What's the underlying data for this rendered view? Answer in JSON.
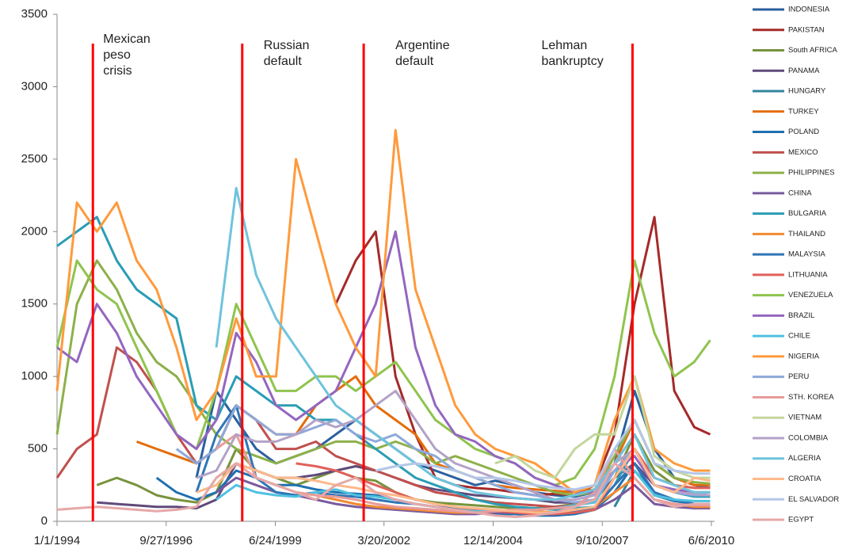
{
  "chart_data": {
    "type": "line",
    "x": [
      1994,
      1994.5,
      1995,
      1995.5,
      1996,
      1996.5,
      1997,
      1997.5,
      1998,
      1998.5,
      1999,
      1999.5,
      2000,
      2000.5,
      2001,
      2001.5,
      2002,
      2002.5,
      2003,
      2003.5,
      2004,
      2004.5,
      2005,
      2005.5,
      2006,
      2006.5,
      2007,
      2007.5,
      2008,
      2008.5,
      2009,
      2009.5,
      2010,
      2010.4
    ],
    "xlim": [
      1994,
      2010.5
    ],
    "xticks": [
      {
        "value": 1994.0,
        "label": "1/1/1994"
      },
      {
        "value": 1996.74,
        "label": "9/27/1996"
      },
      {
        "value": 1999.48,
        "label": "6/24/1999"
      },
      {
        "value": 2002.21,
        "label": "3/20/2002"
      },
      {
        "value": 2004.95,
        "label": "12/14/2004"
      },
      {
        "value": 2007.69,
        "label": "9/10/2007"
      },
      {
        "value": 2010.43,
        "label": "6/6/2010"
      }
    ],
    "ylim": [
      0,
      3500
    ],
    "yticks": [
      0,
      500,
      1000,
      1500,
      2000,
      2500,
      3000,
      3500
    ],
    "grid": false,
    "legend": "right",
    "events": [
      {
        "label": [
          "Mexican",
          "peso",
          "crisis"
        ],
        "x": 1994.9,
        "color": "#ff0000"
      },
      {
        "label": [
          "Russian",
          "default"
        ],
        "x": 1998.65,
        "color": "#ff0000"
      },
      {
        "label": [
          "Argentine",
          "default"
        ],
        "x": 2001.7,
        "color": "#ff0000"
      },
      {
        "label": [
          "Lehman",
          "bankruptcy"
        ],
        "x": 2008.45,
        "color": "#ff0000"
      }
    ],
    "series": [
      {
        "name": "INDONESIA",
        "color": "#2a5f9e",
        "values": [
          null,
          null,
          null,
          null,
          null,
          null,
          null,
          300,
          900,
          700,
          500,
          400,
          450,
          500,
          600,
          700,
          600,
          500,
          400,
          350,
          300,
          250,
          280,
          250,
          200,
          180,
          170,
          200,
          400,
          900,
          500,
          300,
          250,
          230
        ]
      },
      {
        "name": "PAKISTAN",
        "color": "#a52a2a",
        "values": [
          null,
          null,
          null,
          null,
          null,
          null,
          null,
          null,
          null,
          null,
          null,
          null,
          null,
          null,
          1500,
          1800,
          2000,
          1000,
          600,
          300,
          250,
          230,
          220,
          200,
          180,
          190,
          180,
          250,
          600,
          1500,
          2100,
          900,
          650,
          600
        ]
      },
      {
        "name": "South AFRICA",
        "color": "#77933c",
        "values": [
          null,
          null,
          250,
          300,
          250,
          180,
          150,
          130,
          200,
          500,
          350,
          300,
          250,
          300,
          350,
          300,
          280,
          200,
          150,
          130,
          120,
          110,
          100,
          90,
          90,
          100,
          120,
          150,
          300,
          600,
          350,
          250,
          200,
          200
        ]
      },
      {
        "name": "PANAMA",
        "color": "#604a7b",
        "values": [
          null,
          null,
          130,
          120,
          110,
          100,
          100,
          90,
          150,
          400,
          350,
          300,
          300,
          320,
          350,
          380,
          350,
          300,
          250,
          220,
          200,
          180,
          170,
          160,
          150,
          130,
          130,
          150,
          300,
          400,
          250,
          200,
          180,
          180
        ]
      },
      {
        "name": "HUNGARY",
        "color": "#31859c",
        "values": [
          null,
          null,
          null,
          null,
          null,
          null,
          null,
          null,
          null,
          null,
          null,
          null,
          null,
          null,
          null,
          null,
          null,
          null,
          null,
          null,
          null,
          null,
          null,
          null,
          null,
          null,
          null,
          null,
          100,
          350,
          200,
          150,
          120,
          110
        ]
      },
      {
        "name": "TURKEY",
        "color": "#e46c0a",
        "values": [
          null,
          null,
          null,
          null,
          550,
          500,
          450,
          400,
          500,
          800,
          700,
          600,
          600,
          800,
          900,
          1000,
          800,
          700,
          600,
          400,
          350,
          300,
          250,
          230,
          220,
          210,
          200,
          220,
          400,
          700,
          400,
          300,
          250,
          250
        ]
      },
      {
        "name": "POLAND",
        "color": "#1f70b0",
        "values": [
          null,
          null,
          null,
          null,
          null,
          300,
          200,
          150,
          200,
          350,
          300,
          250,
          250,
          220,
          200,
          190,
          180,
          150,
          120,
          100,
          80,
          60,
          50,
          50,
          40,
          40,
          50,
          80,
          200,
          400,
          180,
          140,
          120,
          120
        ]
      },
      {
        "name": "MEXICO",
        "color": "#c0504d",
        "values": [
          300,
          500,
          600,
          1200,
          1100,
          900,
          600,
          400,
          500,
          800,
          700,
          500,
          500,
          550,
          450,
          400,
          350,
          300,
          250,
          200,
          180,
          150,
          130,
          120,
          110,
          100,
          110,
          150,
          350,
          500,
          250,
          200,
          180,
          170
        ]
      },
      {
        "name": "PHILIPPINES",
        "color": "#8db04a",
        "values": [
          600,
          1500,
          1800,
          1600,
          1300,
          1100,
          1000,
          800,
          600,
          500,
          450,
          400,
          450,
          500,
          550,
          550,
          500,
          550,
          500,
          400,
          450,
          400,
          350,
          300,
          250,
          200,
          180,
          200,
          450,
          700,
          400,
          300,
          270,
          260
        ]
      },
      {
        "name": "CHINA",
        "color": "#7a5a9e",
        "values": [
          null,
          null,
          null,
          null,
          null,
          null,
          null,
          null,
          200,
          300,
          250,
          200,
          180,
          150,
          120,
          100,
          90,
          80,
          70,
          60,
          50,
          50,
          60,
          60,
          50,
          50,
          60,
          80,
          150,
          250,
          120,
          100,
          90,
          90
        ]
      },
      {
        "name": "BULGARIA",
        "color": "#2a9db5",
        "values": [
          1900,
          2000,
          2100,
          1800,
          1600,
          1500,
          1400,
          800,
          700,
          1000,
          900,
          800,
          800,
          700,
          700,
          600,
          500,
          400,
          300,
          250,
          200,
          150,
          120,
          100,
          90,
          80,
          90,
          100,
          250,
          500,
          250,
          200,
          170,
          170
        ]
      },
      {
        "name": "THAILAND",
        "color": "#f08a30",
        "values": [
          null,
          null,
          null,
          null,
          null,
          null,
          null,
          null,
          300,
          400,
          300,
          250,
          200,
          180,
          150,
          120,
          100,
          90,
          80,
          70,
          60,
          60,
          70,
          80,
          70,
          60,
          70,
          100,
          200,
          300,
          150,
          120,
          100,
          100
        ]
      },
      {
        "name": "MALAYSIA",
        "color": "#2e75b6",
        "values": [
          null,
          null,
          null,
          null,
          null,
          null,
          null,
          200,
          600,
          800,
          300,
          200,
          180,
          200,
          180,
          170,
          150,
          130,
          120,
          100,
          90,
          80,
          70,
          60,
          60,
          60,
          70,
          90,
          250,
          400,
          200,
          150,
          120,
          120
        ]
      },
      {
        "name": "LITHUANIA",
        "color": "#e0605a",
        "values": [
          null,
          null,
          null,
          null,
          null,
          null,
          null,
          null,
          null,
          null,
          null,
          null,
          400,
          380,
          350,
          300,
          250,
          200,
          150,
          120,
          100,
          80,
          70,
          60,
          50,
          50,
          60,
          80,
          300,
          500,
          300,
          250,
          230,
          230
        ]
      },
      {
        "name": "VENEZUELA",
        "color": "#8fc44e",
        "values": [
          1200,
          1800,
          1600,
          1500,
          1200,
          900,
          600,
          500,
          900,
          1500,
          1200,
          900,
          900,
          1000,
          1000,
          900,
          1000,
          1100,
          900,
          700,
          600,
          500,
          450,
          400,
          300,
          250,
          300,
          500,
          1000,
          1800,
          1300,
          1000,
          1100,
          1250
        ]
      },
      {
        "name": "BRAZIL",
        "color": "#9466c0",
        "values": [
          1200,
          1100,
          1500,
          1300,
          1000,
          800,
          600,
          500,
          700,
          1300,
          1100,
          800,
          700,
          800,
          900,
          1200,
          1500,
          2000,
          1200,
          800,
          600,
          550,
          450,
          400,
          300,
          250,
          200,
          200,
          350,
          450,
          250,
          220,
          200,
          200
        ]
      },
      {
        "name": "CHILE",
        "color": "#4fc1e0",
        "values": [
          null,
          null,
          null,
          null,
          null,
          null,
          null,
          null,
          150,
          250,
          200,
          180,
          170,
          200,
          220,
          180,
          170,
          150,
          120,
          100,
          80,
          70,
          70,
          80,
          80,
          90,
          110,
          130,
          350,
          350,
          180,
          150,
          140,
          140
        ]
      },
      {
        "name": "NIGERIA",
        "color": "#ff9a3c",
        "values": [
          900,
          2200,
          2000,
          2200,
          1800,
          1600,
          1200,
          700,
          900,
          1400,
          1000,
          1000,
          2500,
          2000,
          1500,
          1200,
          1000,
          2700,
          1600,
          1200,
          800,
          600,
          500,
          450,
          400,
          300,
          200,
          250,
          700,
          1000,
          500,
          400,
          350,
          350
        ]
      },
      {
        "name": "PERU",
        "color": "#8ea9db",
        "values": [
          null,
          null,
          null,
          null,
          null,
          null,
          500,
          400,
          500,
          800,
          700,
          600,
          600,
          650,
          700,
          600,
          550,
          600,
          500,
          450,
          350,
          300,
          250,
          200,
          180,
          150,
          130,
          150,
          350,
          500,
          250,
          200,
          180,
          180
        ]
      },
      {
        "name": "STH. KOREA",
        "color": "#e89b9b",
        "values": [
          null,
          null,
          null,
          null,
          null,
          null,
          null,
          null,
          500,
          600,
          300,
          250,
          200,
          180,
          170,
          150,
          120,
          100,
          90,
          80,
          70,
          60,
          70,
          80,
          80,
          90,
          100,
          200,
          500,
          300,
          150,
          120,
          110,
          110
        ]
      },
      {
        "name": "VIETNAM",
        "color": "#c3d69b",
        "values": [
          null,
          null,
          null,
          null,
          null,
          null,
          null,
          null,
          null,
          null,
          null,
          null,
          null,
          null,
          null,
          null,
          null,
          null,
          null,
          null,
          null,
          null,
          400,
          450,
          350,
          300,
          500,
          600,
          600,
          1000,
          450,
          350,
          300,
          300
        ]
      },
      {
        "name": "COLOMBIA",
        "color": "#b3a2c7",
        "values": [
          null,
          null,
          null,
          null,
          null,
          null,
          null,
          300,
          350,
          600,
          550,
          550,
          600,
          700,
          650,
          700,
          800,
          900,
          700,
          500,
          400,
          350,
          300,
          250,
          200,
          150,
          150,
          180,
          400,
          500,
          250,
          200,
          190,
          180
        ]
      },
      {
        "name": "ALGERIA",
        "color": "#6fc3dc",
        "values": [
          null,
          null,
          null,
          null,
          null,
          null,
          null,
          null,
          1200,
          2300,
          1700,
          1400,
          1200,
          1000,
          800,
          700,
          600,
          500,
          400,
          300,
          250,
          200,
          180,
          160,
          150,
          150,
          180,
          220,
          400,
          600,
          300,
          250,
          200,
          200
        ]
      },
      {
        "name": "CROATIA",
        "color": "#fcb98b",
        "values": [
          null,
          null,
          null,
          null,
          null,
          null,
          null,
          200,
          250,
          400,
          350,
          300,
          300,
          280,
          250,
          230,
          200,
          180,
          150,
          120,
          100,
          90,
          80,
          70,
          60,
          60,
          80,
          100,
          300,
          500,
          250,
          200,
          300,
          280
        ]
      },
      {
        "name": "EL SALVADOR",
        "color": "#b4c7e7",
        "values": [
          null,
          null,
          null,
          null,
          null,
          null,
          null,
          null,
          null,
          null,
          null,
          null,
          null,
          null,
          null,
          null,
          350,
          380,
          400,
          380,
          350,
          300,
          300,
          280,
          250,
          230,
          220,
          250,
          500,
          700,
          400,
          350,
          330,
          330
        ]
      },
      {
        "name": "EGYPT",
        "color": "#e6a8a8",
        "values": [
          80,
          90,
          100,
          90,
          80,
          70,
          80,
          100,
          300,
          400,
          300,
          250,
          200,
          150,
          250,
          300,
          200,
          150,
          120,
          100,
          80,
          60,
          40,
          30,
          40,
          60,
          100,
          150,
          400,
          300,
          150,
          100,
          120,
          120
        ]
      }
    ]
  }
}
